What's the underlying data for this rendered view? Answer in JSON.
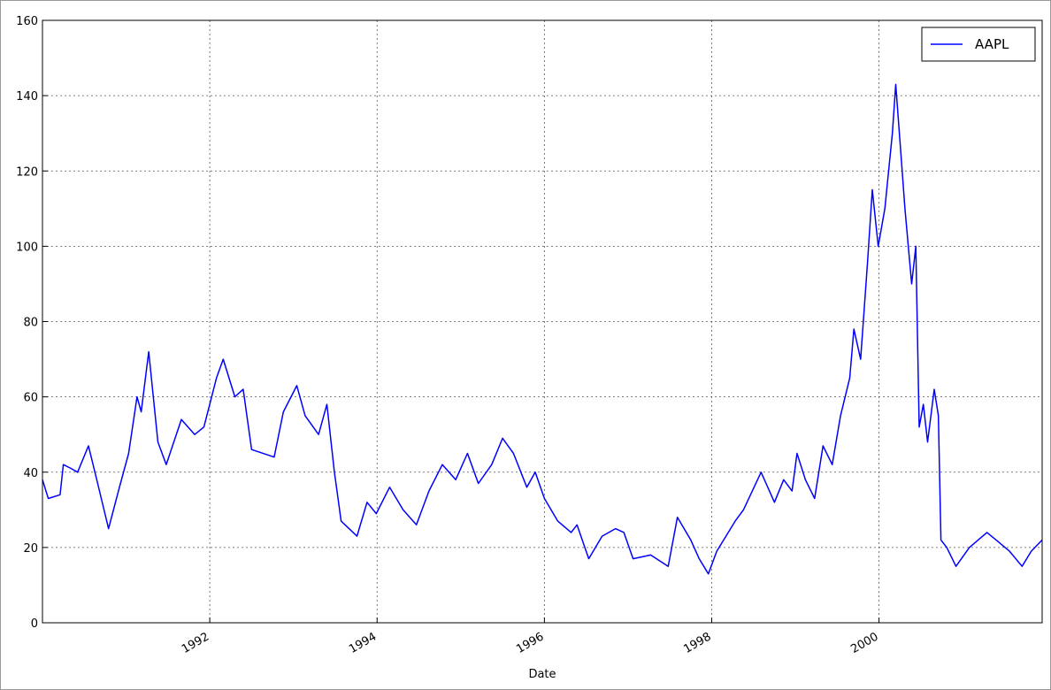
{
  "chart_data": {
    "type": "line",
    "x_label": "Date",
    "x": [
      1990.0,
      1990.07,
      1990.21,
      1990.25,
      1990.34,
      1990.42,
      1990.55,
      1990.66,
      1990.79,
      1990.92,
      1991.03,
      1991.13,
      1991.18,
      1991.27,
      1991.38,
      1991.48,
      1991.66,
      1991.82,
      1991.93,
      1992.08,
      1992.16,
      1992.3,
      1992.4,
      1992.5,
      1992.77,
      1992.88,
      1993.04,
      1993.14,
      1993.3,
      1993.4,
      1993.49,
      1993.57,
      1993.76,
      1993.88,
      1993.99,
      1994.15,
      1994.31,
      1994.47,
      1994.62,
      1994.78,
      1994.94,
      1995.08,
      1995.21,
      1995.37,
      1995.5,
      1995.63,
      1995.79,
      1995.89,
      1996.0,
      1996.16,
      1996.32,
      1996.39,
      1996.53,
      1996.69,
      1996.85,
      1996.95,
      1997.06,
      1997.27,
      1997.48,
      1997.59,
      1997.75,
      1997.85,
      1997.96,
      1998.06,
      1998.28,
      1998.38,
      1998.59,
      1998.75,
      1998.86,
      1998.96,
      1999.02,
      1999.12,
      1999.23,
      1999.33,
      1999.44,
      1999.54,
      1999.65,
      1999.7,
      1999.78,
      1999.86,
      1999.92,
      1999.99,
      2000.07,
      2000.16,
      2000.2,
      2000.26,
      2000.31,
      2000.39,
      2000.44,
      2000.48,
      2000.53,
      2000.58,
      2000.66,
      2000.71,
      2000.74,
      2000.81,
      2000.92,
      2001.08,
      2001.29,
      2001.4,
      2001.56,
      2001.71,
      2001.82,
      2001.95
    ],
    "series": [
      {
        "name": "AAPL",
        "color": "#0000ff",
        "values": [
          38,
          33,
          34,
          42,
          41,
          40,
          47,
          37,
          25,
          36,
          45,
          60,
          56,
          72,
          48,
          42,
          54,
          50,
          52,
          65,
          70,
          60,
          62,
          46,
          44,
          56,
          63,
          55,
          50,
          58,
          40,
          27,
          23,
          32,
          29,
          36,
          30,
          26,
          35,
          42,
          38,
          45,
          37,
          42,
          49,
          45,
          36,
          40,
          33,
          27,
          24,
          26,
          17,
          23,
          25,
          24,
          17,
          18,
          15,
          28,
          22,
          17,
          13,
          19,
          27,
          30,
          40,
          32,
          38,
          35,
          45,
          38,
          33,
          47,
          42,
          55,
          65,
          78,
          70,
          95,
          115,
          100,
          110,
          130,
          143,
          125,
          110,
          90,
          100,
          52,
          58,
          48,
          62,
          55,
          22,
          20,
          15,
          20,
          24,
          22,
          19,
          15,
          19,
          22
        ]
      }
    ],
    "xlim": [
      1990.0,
      2001.95
    ],
    "xticks": [
      1992,
      1994,
      1996,
      1998,
      2000
    ],
    "ylim": [
      0,
      160
    ],
    "yticks": [
      0,
      20,
      40,
      60,
      80,
      100,
      120,
      140,
      160
    ],
    "grid": true,
    "legend": "upper right"
  }
}
